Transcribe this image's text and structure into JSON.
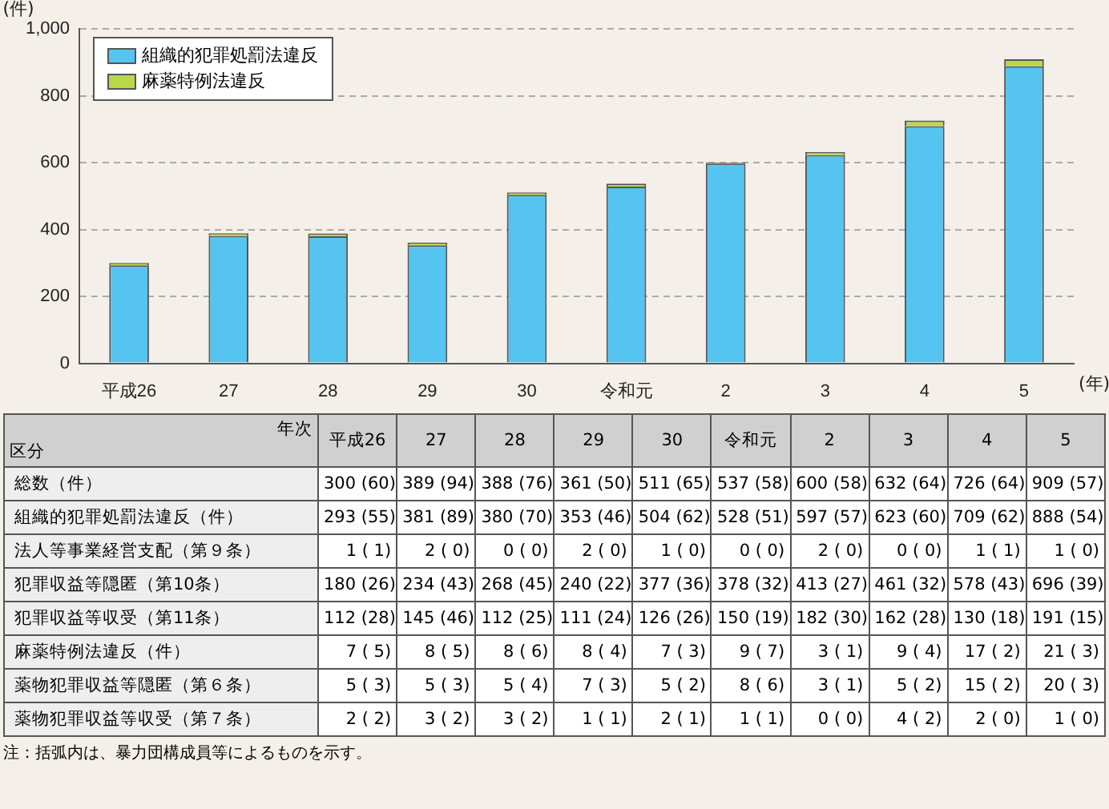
{
  "chart_data": [
    {
      "type": "bar",
      "stacked": true,
      "categories": [
        "平成26",
        "27",
        "28",
        "29",
        "30",
        "令和元",
        "2",
        "3",
        "4",
        "5"
      ],
      "series": [
        {
          "name": "組織的犯罪処罰法違反",
          "color": "#55c4f0",
          "values": [
            293,
            381,
            380,
            353,
            504,
            528,
            597,
            623,
            709,
            888
          ]
        },
        {
          "name": "麻薬特例法違反",
          "color": "#b8d84a",
          "values": [
            7,
            8,
            8,
            8,
            7,
            9,
            3,
            9,
            17,
            21
          ]
        }
      ],
      "ylim": [
        0,
        1000
      ],
      "yticks": [
        0,
        200,
        400,
        600,
        800,
        {
          "value": 1000,
          "label": "1,000"
        }
      ],
      "ylabel": "(件)",
      "xlabel": "(年)",
      "grid": "y",
      "legend": "top left"
    },
    {
      "type": "heatmap",
      "cells": [
        [
          null,
          null,
          null,
          null,
          null,
          null,
          null,
          null,
          null,
          null
        ],
        [
          null,
          null,
          null,
          null,
          null,
          null,
          null,
          null,
          null,
          null
        ],
        [
          null,
          null,
          null,
          null,
          null,
          null,
          null,
          null,
          null,
          null
        ],
        [
          null,
          null,
          null,
          null,
          null,
          null,
          null,
          null,
          null,
          null
        ],
        [
          null,
          null,
          null,
          null,
          null,
          null,
          null,
          null,
          null,
          null
        ],
        [
          null,
          null,
          null,
          null,
          null,
          null,
          null,
          null,
          null,
          null
        ],
        [
          null,
          null,
          null,
          null,
          null,
          null,
          null,
          null,
          null,
          null
        ],
        [
          null,
          null,
          null,
          null,
          null,
          null,
          null,
          null,
          null,
          null
        ]
      ],
      "xlabel": "年次",
      "ylabel": "区分",
      "categories": [
        "平成26",
        "27",
        "28",
        "29",
        "30",
        "令和元",
        "2",
        "3",
        "4",
        "5"
      ],
      "y_categories": [
        "総数（件）",
        "組織的犯罪処罰法違反（件）",
        "法人等事業経営支配（第９条）",
        "犯罪収益等隠匿（第10条）",
        "犯罪収益等収受（第11条）",
        "麻薬特例法違反（件）",
        "薬物犯罪収益等隠匿（第６条）",
        "薬物犯罪収益等収受（第７条）"
      ],
      "cell_labels": [
        [
          "300 (60)",
          "389 (94)",
          "388 (76)",
          "361 (50)",
          "511 (65)",
          "537 (58)",
          "600 (58)",
          "632 (64)",
          "726 (64)",
          "909 (57)"
        ],
        [
          "293 (55)",
          "381 (89)",
          "380 (70)",
          "353 (46)",
          "504 (62)",
          "528 (51)",
          "597 (57)",
          "623 (60)",
          "709 (62)",
          "888 (54)"
        ],
        [
          "1 ( 1)",
          "2 ( 0)",
          "0 ( 0)",
          "2 ( 0)",
          "1 ( 0)",
          "0 ( 0)",
          "2 ( 0)",
          "0 ( 0)",
          "1 ( 1)",
          "1 ( 0)"
        ],
        [
          "180 (26)",
          "234 (43)",
          "268 (45)",
          "240 (22)",
          "377 (36)",
          "378 (32)",
          "413 (27)",
          "461 (32)",
          "578 (43)",
          "696 (39)"
        ],
        [
          "112 (28)",
          "145 (46)",
          "112 (25)",
          "111 (24)",
          "126 (26)",
          "150 (19)",
          "182 (30)",
          "162 (28)",
          "130 (18)",
          "191 (15)"
        ],
        [
          "7 ( 5)",
          "8 ( 5)",
          "8 ( 6)",
          "8 ( 4)",
          "7 ( 3)",
          "9 ( 7)",
          "3 ( 1)",
          "9 ( 4)",
          "17 ( 2)",
          "21 ( 3)"
        ],
        [
          "5 ( 3)",
          "5 ( 3)",
          "5 ( 4)",
          "7 ( 3)",
          "5 ( 2)",
          "8 ( 6)",
          "3 ( 1)",
          "5 ( 2)",
          "15 ( 2)",
          "20 ( 3)"
        ],
        [
          "2 ( 2)",
          "3 ( 2)",
          "3 ( 2)",
          "1 ( 1)",
          "2 ( 1)",
          "1 ( 1)",
          "0 ( 0)",
          "4 ( 2)",
          "2 ( 0)",
          "1 ( 0)"
        ]
      ],
      "annotations": [
        "注：括弧内は、暴力団構成員等によるものを示す。"
      ]
    }
  ]
}
